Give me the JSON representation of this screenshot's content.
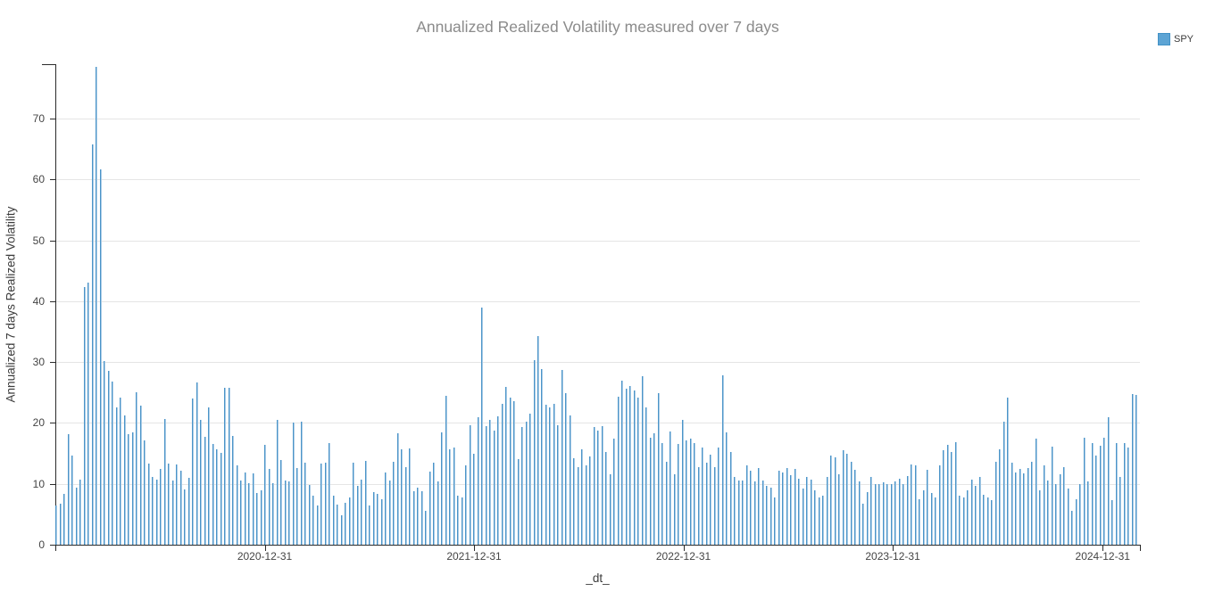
{
  "title": "Annualized Realized Volatility measured over 7 days",
  "legend": {
    "label": "SPY",
    "swatch_color": "#5da4d4"
  },
  "x_axis": {
    "label": "_dt_",
    "tick_labels": [
      "2020-12-31",
      "2021-12-31",
      "2022-12-31",
      "2023-12-31",
      "2024-12-31"
    ]
  },
  "y_axis": {
    "label": "Annualized 7 days Realized Volatility",
    "tick_labels": [
      0,
      10,
      20,
      30,
      40,
      50,
      60,
      70
    ]
  },
  "colors": {
    "bar_edge": "#4a94c8",
    "bar_fill": "#a9cbe6",
    "legend_swatch": "#5da4d4",
    "grid": "#e5e5e5",
    "axis": "#2b2b2b",
    "tick_label": "#444444",
    "axis_label": "#3c3c3c",
    "title": "#8b8b8b"
  },
  "chart_data": {
    "type": "bar",
    "title": "Annualized Realized Volatility measured over 7 days",
    "xlabel": "_dt_",
    "ylabel": "Annualized 7 days Realized Volatility",
    "legend_position": "top-right-outside",
    "grid": "horizontal-only",
    "x_range": [
      "2020-01-01",
      "2025-03-06"
    ],
    "ylim": [
      0,
      79
    ],
    "x_tick_dates": [
      "2020-12-31",
      "2021-12-31",
      "2022-12-31",
      "2023-12-31",
      "2024-12-31"
    ],
    "y_ticks": [
      0,
      10,
      20,
      30,
      40,
      50,
      60,
      70
    ],
    "series": [
      {
        "name": "SPY",
        "start_date": "2020-01-03",
        "interval_days": 7,
        "values": [
          6.5,
          6.7,
          8.4,
          18.1,
          14.7,
          9.3,
          10.7,
          42.3,
          43.0,
          65.7,
          78.5,
          61.6,
          30.2,
          28.5,
          26.8,
          22.6,
          24.1,
          21.2,
          18.1,
          18.4,
          25.0,
          22.9,
          17.1,
          13.3,
          11.2,
          10.7,
          12.5,
          20.6,
          13.3,
          10.6,
          13.2,
          12.1,
          9.1,
          11.0,
          24.0,
          26.6,
          20.5,
          17.7,
          22.5,
          16.6,
          15.7,
          15.1,
          25.8,
          25.8,
          17.8,
          13.1,
          10.5,
          11.9,
          10.1,
          11.7,
          8.5,
          9.0,
          16.4,
          12.4,
          10.1,
          20.5,
          13.9,
          10.6,
          10.4,
          20.0,
          12.6,
          20.2,
          13.4,
          9.8,
          8.0,
          6.5,
          13.3,
          13.4,
          16.7,
          8.1,
          6.6,
          4.9,
          6.9,
          7.7,
          13.4,
          9.6,
          10.7,
          13.7,
          6.4,
          8.7,
          8.3,
          7.4,
          11.9,
          10.5,
          13.6,
          18.3,
          15.6,
          12.8,
          15.8,
          8.8,
          9.3,
          8.8,
          5.5,
          12.0,
          13.5,
          10.4,
          18.4,
          24.5,
          15.7,
          16.0,
          8.0,
          7.8,
          13.0,
          19.6,
          15.0,
          21.0,
          39.0,
          19.5,
          20.5,
          18.7,
          21.1,
          23.2,
          25.9,
          24.2,
          23.6,
          14.0,
          19.4,
          20.2,
          21.5,
          30.3,
          34.3,
          28.9,
          23.0,
          22.6,
          23.1,
          19.6,
          28.7,
          24.9,
          21.3,
          14.2,
          12.8,
          15.7,
          13.0,
          14.5,
          19.3,
          18.8,
          19.5,
          15.3,
          11.5,
          17.5,
          24.3,
          27.0,
          25.6,
          26.0,
          25.4,
          24.1,
          27.7,
          22.6,
          17.6,
          18.3,
          24.9,
          16.7,
          13.6,
          18.6,
          11.6,
          16.6,
          20.5,
          17.2,
          17.4,
          16.7,
          12.8,
          15.9,
          13.5,
          14.8,
          12.8,
          15.9,
          27.8,
          18.5,
          15.2,
          11.2,
          10.6,
          10.6,
          13.0,
          12.1,
          10.4,
          12.6,
          10.6,
          9.6,
          9.4,
          7.8,
          12.2,
          11.8,
          12.6,
          11.4,
          12.5,
          10.8,
          9.2,
          11.2,
          10.7,
          9.0,
          7.7,
          8.1,
          11.1,
          14.7,
          14.4,
          11.6,
          15.5,
          15.0,
          13.6,
          12.3,
          10.4,
          6.7,
          8.7,
          11.1,
          10.0,
          9.9,
          10.2,
          10.0,
          10.0,
          10.4,
          10.8,
          9.9,
          11.3,
          13.2,
          13.1,
          7.5,
          9.0,
          12.3,
          8.5,
          7.8,
          13.0,
          15.5,
          16.4,
          15.2,
          16.9,
          8.1,
          7.7,
          9.0,
          10.7,
          9.6,
          11.2,
          8.2,
          7.8,
          7.3,
          13.6,
          15.7,
          20.2,
          24.1,
          13.5,
          11.8,
          12.5,
          11.7,
          12.6,
          13.6,
          17.4,
          9.0,
          13.1,
          10.6,
          16.1,
          9.9,
          11.6,
          12.8,
          9.2,
          5.6,
          7.5,
          10.0,
          17.6,
          10.4,
          16.7,
          14.7,
          16.2,
          17.6,
          21.0,
          7.3,
          16.7,
          11.2,
          16.7,
          15.9,
          24.8,
          24.6
        ]
      }
    ]
  }
}
